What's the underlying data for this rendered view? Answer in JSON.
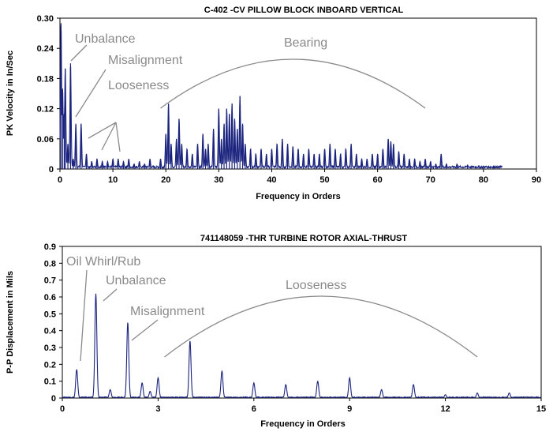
{
  "chart_data": [
    {
      "type": "line",
      "title": "C-402     -CV   PILLOW BLOCK INBOARD VERTICAL",
      "xlabel": "Frequency in Orders",
      "ylabel": "PK Velocity in In/Sec",
      "xlim": [
        0,
        90
      ],
      "ylim": [
        0,
        0.3
      ],
      "xticks": [
        0,
        10,
        20,
        30,
        40,
        50,
        60,
        70,
        80,
        90
      ],
      "yticks": [
        "0",
        "0.06",
        "0.12",
        "0.18",
        "0.24",
        "0.30"
      ],
      "grid": false,
      "color": "#1a237e",
      "noise_floor": 0.004,
      "x_end": 83.5,
      "peaks": [
        {
          "x": 0.2,
          "y": 0.29
        },
        {
          "x": 0.5,
          "y": 0.16
        },
        {
          "x": 0.8,
          "y": 0.11
        },
        {
          "x": 1.0,
          "y": 0.2
        },
        {
          "x": 1.5,
          "y": 0.05
        },
        {
          "x": 2.0,
          "y": 0.21
        },
        {
          "x": 2.5,
          "y": 0.02
        },
        {
          "x": 3.0,
          "y": 0.09
        },
        {
          "x": 4.0,
          "y": 0.09
        },
        {
          "x": 5.0,
          "y": 0.03
        },
        {
          "x": 6.0,
          "y": 0.015
        },
        {
          "x": 7.0,
          "y": 0.02
        },
        {
          "x": 8.0,
          "y": 0.015
        },
        {
          "x": 9.0,
          "y": 0.015
        },
        {
          "x": 10.0,
          "y": 0.02
        },
        {
          "x": 11.0,
          "y": 0.02
        },
        {
          "x": 12.0,
          "y": 0.015
        },
        {
          "x": 13.0,
          "y": 0.02
        },
        {
          "x": 14.0,
          "y": 0.01
        },
        {
          "x": 15.0,
          "y": 0.015
        },
        {
          "x": 16.0,
          "y": 0.01
        },
        {
          "x": 17.0,
          "y": 0.02
        },
        {
          "x": 19.0,
          "y": 0.02
        },
        {
          "x": 20.0,
          "y": 0.07
        },
        {
          "x": 20.5,
          "y": 0.13
        },
        {
          "x": 21.0,
          "y": 0.05
        },
        {
          "x": 22.0,
          "y": 0.06
        },
        {
          "x": 22.5,
          "y": 0.1
        },
        {
          "x": 23.0,
          "y": 0.05
        },
        {
          "x": 24.0,
          "y": 0.04
        },
        {
          "x": 25.0,
          "y": 0.03
        },
        {
          "x": 26.0,
          "y": 0.05
        },
        {
          "x": 27.0,
          "y": 0.07
        },
        {
          "x": 27.5,
          "y": 0.04
        },
        {
          "x": 28.0,
          "y": 0.05
        },
        {
          "x": 29.0,
          "y": 0.08
        },
        {
          "x": 30.0,
          "y": 0.12
        },
        {
          "x": 30.5,
          "y": 0.06
        },
        {
          "x": 31.0,
          "y": 0.09
        },
        {
          "x": 31.5,
          "y": 0.12
        },
        {
          "x": 32.0,
          "y": 0.11
        },
        {
          "x": 32.5,
          "y": 0.13
        },
        {
          "x": 33.0,
          "y": 0.1
        },
        {
          "x": 33.5,
          "y": 0.08
        },
        {
          "x": 34.0,
          "y": 0.145
        },
        {
          "x": 34.5,
          "y": 0.09
        },
        {
          "x": 35.0,
          "y": 0.05
        },
        {
          "x": 36.0,
          "y": 0.04
        },
        {
          "x": 37.0,
          "y": 0.03
        },
        {
          "x": 38.0,
          "y": 0.04
        },
        {
          "x": 39.0,
          "y": 0.03
        },
        {
          "x": 40.0,
          "y": 0.04
        },
        {
          "x": 41.0,
          "y": 0.05
        },
        {
          "x": 42.0,
          "y": 0.06
        },
        {
          "x": 43.0,
          "y": 0.05
        },
        {
          "x": 44.0,
          "y": 0.045
        },
        {
          "x": 45.0,
          "y": 0.04
        },
        {
          "x": 46.0,
          "y": 0.03
        },
        {
          "x": 47.0,
          "y": 0.04
        },
        {
          "x": 48.0,
          "y": 0.03
        },
        {
          "x": 49.0,
          "y": 0.03
        },
        {
          "x": 50.0,
          "y": 0.04
        },
        {
          "x": 51.0,
          "y": 0.05
        },
        {
          "x": 52.0,
          "y": 0.04
        },
        {
          "x": 53.0,
          "y": 0.03
        },
        {
          "x": 54.0,
          "y": 0.04
        },
        {
          "x": 55.0,
          "y": 0.05
        },
        {
          "x": 56.0,
          "y": 0.03
        },
        {
          "x": 57.0,
          "y": 0.02
        },
        {
          "x": 58.0,
          "y": 0.02
        },
        {
          "x": 59.0,
          "y": 0.03
        },
        {
          "x": 60.0,
          "y": 0.03
        },
        {
          "x": 61.0,
          "y": 0.04
        },
        {
          "x": 62.0,
          "y": 0.06
        },
        {
          "x": 62.5,
          "y": 0.055
        },
        {
          "x": 63.0,
          "y": 0.05
        },
        {
          "x": 64.0,
          "y": 0.035
        },
        {
          "x": 65.0,
          "y": 0.03
        },
        {
          "x": 66.0,
          "y": 0.02
        },
        {
          "x": 67.0,
          "y": 0.02
        },
        {
          "x": 68.0,
          "y": 0.015
        },
        {
          "x": 69.0,
          "y": 0.02
        },
        {
          "x": 70.0,
          "y": 0.015
        },
        {
          "x": 71.0,
          "y": 0.01
        },
        {
          "x": 72.0,
          "y": 0.03
        },
        {
          "x": 73.0,
          "y": 0.01
        },
        {
          "x": 75.0,
          "y": 0.01
        },
        {
          "x": 77.0,
          "y": 0.008
        },
        {
          "x": 80.0,
          "y": 0.006
        },
        {
          "x": 83.0,
          "y": 0.005
        }
      ],
      "annotations": [
        {
          "text": "Unbalance",
          "points_to": [
            [
              2.0,
              0.21
            ]
          ]
        },
        {
          "text": "Misalignment",
          "points_to": [
            [
              3.0,
              0.1
            ]
          ]
        },
        {
          "text": "Looseness",
          "points_to": [
            [
              7.0,
              0.05
            ],
            [
              11.0,
              0.03
            ]
          ]
        },
        {
          "text": "Bearing",
          "arc_x_range": [
            19,
            69
          ]
        }
      ]
    },
    {
      "type": "line",
      "title": "741148059 -THR   TURBINE ROTOR AXIAL-THRUST",
      "xlabel": "Frequency in Orders",
      "ylabel": "P-P Displacement in Mils",
      "xlim": [
        0,
        15
      ],
      "ylim": [
        0,
        0.9
      ],
      "xticks": [
        0,
        3,
        6,
        9,
        12,
        15
      ],
      "yticks": [
        "0",
        "0.1",
        "0.2",
        "0.3",
        "0.4",
        "0.5",
        "0.6",
        "0.7",
        "0.8",
        "0.9"
      ],
      "grid": false,
      "color": "#1a237e",
      "peaks": [
        {
          "x": 0.45,
          "y": 0.17
        },
        {
          "x": 1.05,
          "y": 0.62
        },
        {
          "x": 1.5,
          "y": 0.05
        },
        {
          "x": 2.05,
          "y": 0.45
        },
        {
          "x": 2.5,
          "y": 0.09
        },
        {
          "x": 2.75,
          "y": 0.04
        },
        {
          "x": 3.0,
          "y": 0.12
        },
        {
          "x": 4.0,
          "y": 0.34
        },
        {
          "x": 5.0,
          "y": 0.16
        },
        {
          "x": 6.0,
          "y": 0.09
        },
        {
          "x": 7.0,
          "y": 0.08
        },
        {
          "x": 8.0,
          "y": 0.1
        },
        {
          "x": 9.0,
          "y": 0.12
        },
        {
          "x": 10.0,
          "y": 0.05
        },
        {
          "x": 11.0,
          "y": 0.08
        },
        {
          "x": 12.0,
          "y": 0.02
        },
        {
          "x": 13.0,
          "y": 0.03
        },
        {
          "x": 14.0,
          "y": 0.03
        }
      ],
      "annotations": [
        {
          "text": "Oil Whirl/Rub",
          "points_to": [
            [
              0.45,
              0.18
            ]
          ]
        },
        {
          "text": "Unbalance",
          "points_to": [
            [
              1.05,
              0.62
            ]
          ]
        },
        {
          "text": "Misalignment",
          "points_to": [
            [
              2.1,
              0.45
            ]
          ]
        },
        {
          "text": "Looseness",
          "arc_x_range": [
            3.2,
            13.0
          ]
        }
      ]
    }
  ]
}
